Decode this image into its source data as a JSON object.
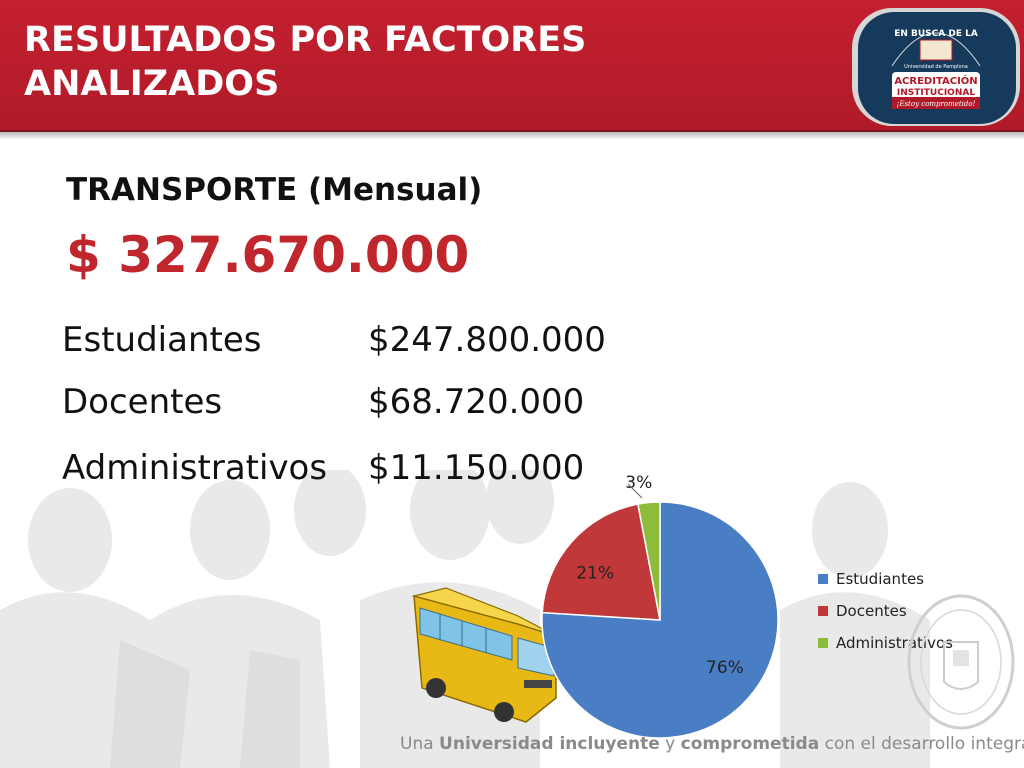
{
  "header": {
    "title_line1": "RESULTADOS POR FACTORES",
    "title_line2": "ANALIZADOS",
    "seal_text_top": "EN BUSCA DE LA",
    "seal_text_university": "Universidad de Pamplona",
    "seal_text_main1": "ACREDITACIÓN",
    "seal_text_main2": "INSTITUCIONAL",
    "seal_text_motto": "¡Estoy comprometido!"
  },
  "content": {
    "subtitle": "TRANSPORTE (Mensual)",
    "total": "$ 327.670.000",
    "rows": [
      {
        "label": "Estudiantes",
        "value": "$247.800.000"
      },
      {
        "label": "Docentes",
        "value": "$68.720.000"
      },
      {
        "label": "Administrativos",
        "value": "$11.150.000"
      }
    ]
  },
  "chart_data": {
    "type": "pie",
    "categories": [
      "Estudiantes",
      "Docentes",
      "Administrativos"
    ],
    "values": [
      76,
      21,
      3
    ],
    "data_labels": [
      "76%",
      "21%",
      "3%"
    ],
    "colors": [
      "#4a7ec4",
      "#c0383a",
      "#8dbb3c"
    ],
    "legend_placement": "right"
  },
  "footer": {
    "part1": "Una ",
    "part2": "Universidad incluyente",
    "part3": " y ",
    "part4": "comprometida",
    "part5": " con el desarrollo integral"
  }
}
